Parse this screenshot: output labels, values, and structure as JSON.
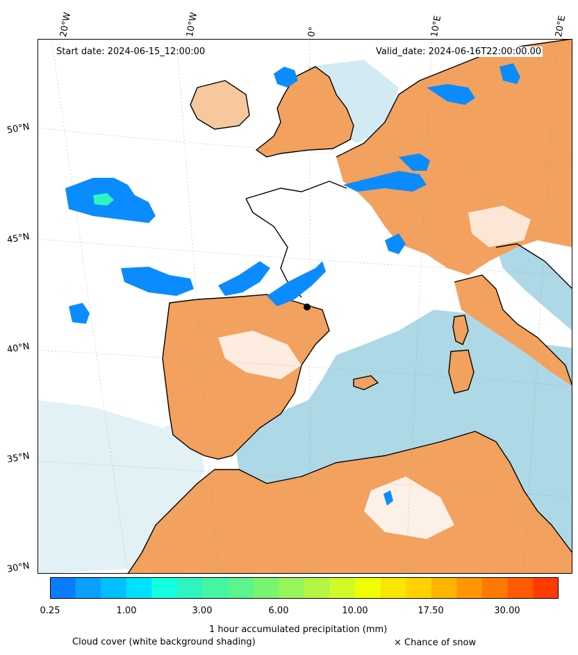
{
  "header": {
    "start_date": "Start date: 2024-06-15_12:00:00",
    "valid_date": "Valid_date: 2024-06-16T22:00:00.00"
  },
  "axes": {
    "lon_labels": [
      "20°W",
      "10°W",
      "0°",
      "10°E",
      "20°E"
    ],
    "lat_labels": [
      "50°N",
      "45°N",
      "40°N",
      "35°N",
      "30°N"
    ]
  },
  "colorbar": {
    "ticks": [
      "0.25",
      "1.00",
      "3.00",
      "6.00",
      "10.00",
      "17.50",
      "30.00"
    ],
    "colors": [
      "#0a7dff",
      "#0aa0ff",
      "#00bfff",
      "#00e0ff",
      "#14ffe0",
      "#2ef5c0",
      "#46f5a0",
      "#5af58c",
      "#78f56e",
      "#96f55a",
      "#b4f546",
      "#d2fa28",
      "#f0ff00",
      "#fae600",
      "#ffd200",
      "#ffb400",
      "#ff9600",
      "#ff7800",
      "#ff5a00",
      "#ff3c00"
    ],
    "title": "1 hour accumulated precipitation (mm)"
  },
  "footer": {
    "cloud_note": "Cloud cover (white background shading)",
    "snow_note": "× Chance of snow"
  },
  "colors": {
    "land": "#f2a15e",
    "sea": "#add8e6",
    "coastline": "#000000",
    "precip": "#0a8cff"
  }
}
